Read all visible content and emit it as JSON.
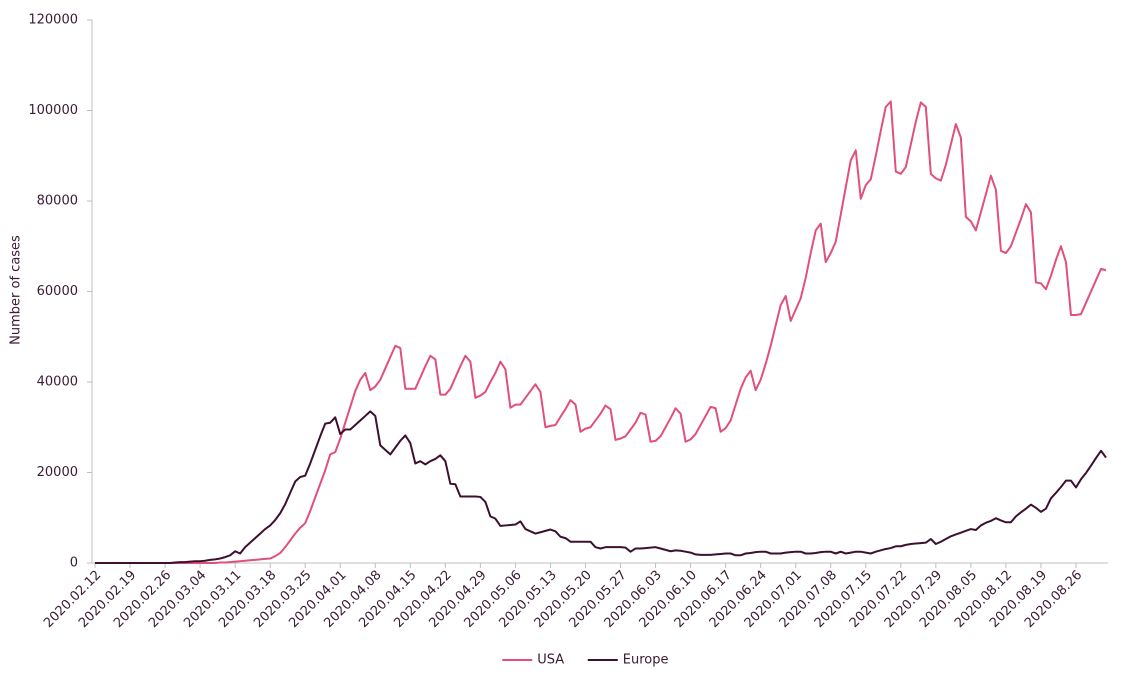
{
  "chart_data": {
    "type": "line",
    "y_label": "Number of cases",
    "categories": [
      "2020.02.12",
      null,
      null,
      null,
      null,
      null,
      null,
      "2020.02.19",
      null,
      null,
      null,
      null,
      null,
      null,
      "2020.02.26",
      null,
      null,
      null,
      null,
      null,
      null,
      "2020.03.04",
      null,
      null,
      null,
      null,
      null,
      null,
      "2020.03.11",
      null,
      null,
      null,
      null,
      null,
      null,
      "2020.03.18",
      null,
      null,
      null,
      null,
      null,
      null,
      "2020.03.25",
      null,
      null,
      null,
      null,
      null,
      null,
      "2020.04.01",
      null,
      null,
      null,
      null,
      null,
      null,
      "2020.04.08",
      null,
      null,
      null,
      null,
      null,
      null,
      "2020.04.15",
      null,
      null,
      null,
      null,
      null,
      null,
      "2020.04.22",
      null,
      null,
      null,
      null,
      null,
      null,
      "2020.04.29",
      null,
      null,
      null,
      null,
      null,
      null,
      "2020.05.06",
      null,
      null,
      null,
      null,
      null,
      null,
      "2020.05.13",
      null,
      null,
      null,
      null,
      null,
      null,
      "2020.05.20",
      null,
      null,
      null,
      null,
      null,
      null,
      "2020.05.27",
      null,
      null,
      null,
      null,
      null,
      null,
      "2020.06.03",
      null,
      null,
      null,
      null,
      null,
      null,
      "2020.06.10",
      null,
      null,
      null,
      null,
      null,
      null,
      "2020.06.17",
      null,
      null,
      null,
      null,
      null,
      null,
      "2020.06.24",
      null,
      null,
      null,
      null,
      null,
      null,
      "2020.07.01",
      null,
      null,
      null,
      null,
      null,
      null,
      "2020.07.08",
      null,
      null,
      null,
      null,
      null,
      null,
      "2020.07.15",
      null,
      null,
      null,
      null,
      null,
      null,
      "2020.07.22",
      null,
      null,
      null,
      null,
      null,
      null,
      "2020.07.29",
      null,
      null,
      null,
      null,
      null,
      null,
      "2020.08.05",
      null,
      null,
      null,
      null,
      null,
      null,
      "2020.08.12",
      null,
      null,
      null,
      null,
      null,
      null,
      "2020.08.19",
      null,
      null,
      null,
      null,
      null,
      null,
      "2020.08.26",
      null,
      null,
      null,
      null,
      null,
      null
    ],
    "series": [
      {
        "name": "USA",
        "color": "#e0507a",
        "values": [
          0,
          0,
          0,
          0,
          0,
          0,
          0,
          0,
          0,
          0,
          0,
          0,
          0,
          0,
          0,
          0,
          0,
          0,
          0,
          0,
          0,
          0,
          0,
          0,
          0,
          100,
          100,
          200,
          300,
          400,
          500,
          600,
          700,
          800,
          900,
          1000,
          1500,
          2200,
          3500,
          5000,
          6500,
          7800,
          8800,
          11500,
          14500,
          17500,
          20500,
          24000,
          24500,
          27500,
          31000,
          34500,
          38000,
          40500,
          42000,
          38200,
          39000,
          40500,
          43000,
          45500,
          48000,
          47500,
          38500,
          38500,
          38500,
          41000,
          43500,
          45800,
          45000,
          37200,
          37200,
          38500,
          41000,
          43500,
          45800,
          44500,
          36500,
          37000,
          37800,
          40000,
          42000,
          44500,
          42800,
          34300,
          35000,
          35000,
          36500,
          38000,
          39500,
          37800,
          30000,
          30300,
          30500,
          32300,
          34000,
          36000,
          35000,
          29000,
          29700,
          30000,
          31500,
          33000,
          34800,
          34000,
          27200,
          27500,
          28000,
          29500,
          31000,
          33200,
          32800,
          26800,
          27000,
          28000,
          30000,
          32000,
          34200,
          33000,
          26800,
          27300,
          28500,
          30500,
          32500,
          34500,
          34200,
          29000,
          29800,
          31500,
          35000,
          38500,
          41000,
          42500,
          38200,
          40500,
          44000,
          48000,
          52500,
          57000,
          59000,
          53500,
          56000,
          58500,
          63000,
          68500,
          73500,
          75000,
          66500,
          68500,
          71000,
          77000,
          83000,
          89000,
          91200,
          80500,
          83500,
          84800,
          90000,
          95500,
          100800,
          102000,
          86500,
          86000,
          87500,
          92500,
          97500,
          101800,
          100800,
          86000,
          85000,
          84500,
          88000,
          92500,
          97000,
          94000,
          76500,
          75500,
          73500,
          77500,
          81500,
          85600,
          82500,
          69000,
          68500,
          70000,
          73000,
          76000,
          79300,
          77500,
          62000,
          61800,
          60500,
          63500,
          67000,
          70000,
          66500,
          54800,
          54800,
          55000,
          57500,
          60000,
          62500,
          65000,
          64700
        ]
      },
      {
        "name": "Europe",
        "color": "#3d1030",
        "values": [
          0,
          0,
          0,
          0,
          0,
          0,
          0,
          0,
          0,
          0,
          0,
          0,
          0,
          0,
          0,
          0,
          100,
          200,
          200,
          300,
          400,
          400,
          500,
          700,
          800,
          1000,
          1300,
          1700,
          2600,
          2100,
          3500,
          4500,
          5500,
          6500,
          7500,
          8300,
          9500,
          11000,
          13000,
          15500,
          18000,
          19000,
          19300,
          22000,
          25000,
          28000,
          30800,
          31000,
          32200,
          28500,
          29500,
          29500,
          30500,
          31500,
          32500,
          33500,
          32500,
          26000,
          25000,
          24000,
          25500,
          27000,
          28200,
          26500,
          22000,
          22500,
          21800,
          22500,
          23000,
          23800,
          22500,
          17500,
          17400,
          14700,
          14700,
          14700,
          14700,
          14600,
          13500,
          10300,
          9800,
          8200,
          8300,
          8400,
          8500,
          9200,
          7500,
          7000,
          6500,
          6800,
          7100,
          7400,
          7000,
          5800,
          5500,
          4700,
          4700,
          4700,
          4700,
          4700,
          3500,
          3200,
          3500,
          3500,
          3500,
          3500,
          3400,
          2500,
          3200,
          3200,
          3300,
          3400,
          3500,
          3200,
          2900,
          2600,
          2800,
          2700,
          2500,
          2300,
          1900,
          1800,
          1800,
          1800,
          1900,
          2000,
          2100,
          2100,
          1700,
          1700,
          2100,
          2200,
          2400,
          2500,
          2500,
          2100,
          2100,
          2100,
          2300,
          2400,
          2500,
          2500,
          2100,
          2100,
          2200,
          2400,
          2500,
          2500,
          2100,
          2500,
          2100,
          2300,
          2500,
          2500,
          2300,
          2100,
          2500,
          2800,
          3100,
          3300,
          3700,
          3700,
          4000,
          4200,
          4300,
          4400,
          4500,
          5300,
          4200,
          4700,
          5300,
          5900,
          6300,
          6700,
          7100,
          7500,
          7300,
          8300,
          8900,
          9300,
          9900,
          9400,
          9000,
          9000,
          10300,
          11200,
          12000,
          12900,
          12200,
          11300,
          12000,
          14300,
          15500,
          16800,
          18200,
          18200,
          16700,
          18500,
          19900,
          21500,
          23200,
          24800,
          23300
        ]
      }
    ],
    "ylim": [
      0,
      120000
    ],
    "yticks": [
      0,
      20000,
      40000,
      60000,
      80000,
      100000,
      120000
    ],
    "legend": "bottom"
  }
}
